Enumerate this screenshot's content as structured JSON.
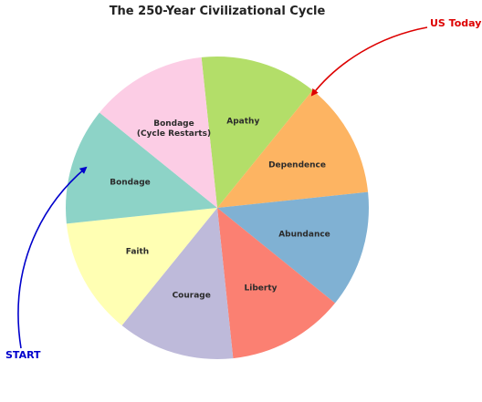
{
  "chart_data": {
    "type": "pie",
    "title": "The 250-Year Civilizational Cycle",
    "slices": [
      {
        "label": "Apathy",
        "value": 1,
        "color": "#b3de69"
      },
      {
        "label": "Dependence",
        "value": 1,
        "color": "#fdb462"
      },
      {
        "label": "Abundance",
        "value": 1,
        "color": "#80b1d3"
      },
      {
        "label": "Liberty",
        "value": 1,
        "color": "#fb8072"
      },
      {
        "label": "Courage",
        "value": 1,
        "color": "#bebada"
      },
      {
        "label": "Faith",
        "value": 1,
        "color": "#ffffb3"
      },
      {
        "label": "Bondage",
        "value": 1,
        "color": "#8dd3c7"
      },
      {
        "label": "Bondage\n(Cycle Restarts)",
        "value": 1,
        "color": "#fccde5"
      }
    ],
    "annotations": [
      {
        "text": "US Today",
        "color": "#dd0000",
        "points_to": "Apathy/Dependence boundary"
      },
      {
        "text": "START",
        "color": "#0000cc",
        "points_to": "Bondage"
      }
    ]
  }
}
